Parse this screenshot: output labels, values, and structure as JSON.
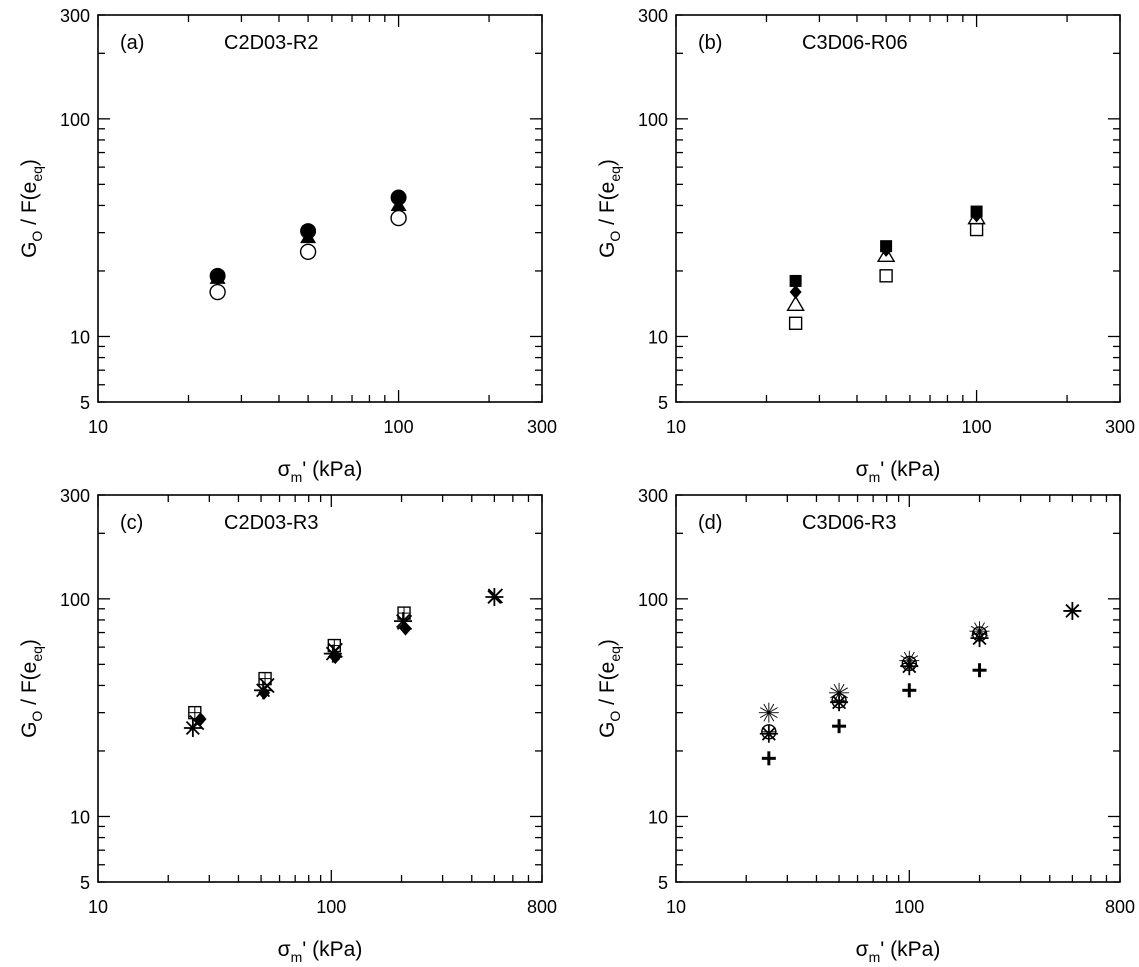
{
  "chart_data": [
    {
      "type": "scatter",
      "panel_label": "(a)",
      "title": "C2D03-R2",
      "xlabel": {
        "main": "σ",
        "sub": "m",
        "rest": "' (kPa)"
      },
      "ylabel": {
        "g": "G",
        "gsub": "O",
        "mid": " / F(e",
        "esub": "eq",
        "end": ")"
      },
      "xscale": "log",
      "yscale": "log",
      "xlim": [
        10,
        300
      ],
      "ylim": [
        5,
        300
      ],
      "xticklabels": [
        "10",
        "100",
        "300"
      ],
      "yticklabels": [
        "5",
        "10",
        "100",
        "300"
      ],
      "grid": false,
      "series": [
        {
          "marker": "circle-filled",
          "points": [
            [
              25,
              19
            ],
            [
              50,
              30.5
            ],
            [
              100,
              43.5
            ]
          ]
        },
        {
          "marker": "circle-open",
          "points": [
            [
              25,
              16
            ],
            [
              50,
              24.5
            ],
            [
              100,
              35
            ]
          ]
        },
        {
          "marker": "triangle-filled",
          "points": [
            [
              25,
              18.5
            ],
            [
              50,
              28.5
            ],
            [
              100,
              40
            ]
          ]
        }
      ]
    },
    {
      "type": "scatter",
      "panel_label": "(b)",
      "title": "C3D06-R06",
      "xlabel": {
        "main": "σ",
        "sub": "m",
        "rest": "' (kPa)"
      },
      "ylabel": {
        "g": "G",
        "gsub": "O",
        "mid": " / F(e",
        "esub": "eq",
        "end": ")"
      },
      "xscale": "log",
      "yscale": "log",
      "xlim": [
        10,
        300
      ],
      "ylim": [
        5,
        300
      ],
      "xticklabels": [
        "10",
        "100",
        "300"
      ],
      "yticklabels": [
        "5",
        "10",
        "100",
        "300"
      ],
      "grid": false,
      "series": [
        {
          "marker": "square-filled",
          "points": [
            [
              25,
              18
            ],
            [
              50,
              26
            ],
            [
              100,
              37.5
            ]
          ]
        },
        {
          "marker": "diamond-filled",
          "points": [
            [
              25,
              16
            ],
            [
              50,
              25
            ],
            [
              100,
              36
            ]
          ]
        },
        {
          "marker": "triangle-open",
          "points": [
            [
              25,
              14
            ],
            [
              50,
              23.5
            ],
            [
              100,
              35
            ]
          ]
        },
        {
          "marker": "square-open",
          "points": [
            [
              25,
              11.5
            ],
            [
              50,
              19
            ],
            [
              100,
              31
            ]
          ]
        }
      ]
    },
    {
      "type": "scatter",
      "panel_label": "(c)",
      "title": "C2D03-R3",
      "xlabel": {
        "main": "σ",
        "sub": "m",
        "rest": "' (kPa)"
      },
      "ylabel": {
        "g": "G",
        "gsub": "O",
        "mid": " / F(e",
        "esub": "eq",
        "end": ")"
      },
      "xscale": "log",
      "yscale": "log",
      "xlim": [
        10,
        800
      ],
      "ylim": [
        5,
        300
      ],
      "xticklabels": [
        "10",
        "100",
        "800"
      ],
      "yticklabels": [
        "5",
        "10",
        "100",
        "300"
      ],
      "grid": false,
      "series": [
        {
          "marker": "square-open-cross",
          "points": [
            [
              26,
              30
            ],
            [
              52,
              43
            ],
            [
              103,
              61
            ],
            [
              205,
              86
            ]
          ]
        },
        {
          "marker": "diamond-filled",
          "points": [
            [
              27.5,
              28
            ],
            [
              51.5,
              37
            ],
            [
              104,
              54
            ],
            [
              208,
              73
            ]
          ]
        },
        {
          "marker": "star",
          "points": [
            [
              25.5,
              25.5
            ],
            [
              51,
              38
            ],
            [
              101.5,
              56
            ],
            [
              203,
              79
            ],
            [
              500,
              102
            ]
          ]
        },
        {
          "marker": "x-cross",
          "points": [
            [
              26.5,
              27
            ],
            [
              53,
              40
            ],
            [
              104,
              58
            ],
            [
              206,
              78
            ],
            [
              505,
              103
            ]
          ]
        }
      ]
    },
    {
      "type": "scatter",
      "panel_label": "(d)",
      "title": "C3D06-R3",
      "xlabel": {
        "main": "σ",
        "sub": "m",
        "rest": "' (kPa)"
      },
      "ylabel": {
        "g": "G",
        "gsub": "O",
        "mid": " / F(e",
        "esub": "eq",
        "end": ")"
      },
      "xscale": "log",
      "yscale": "log",
      "xlim": [
        10,
        800
      ],
      "ylim": [
        5,
        300
      ],
      "xticklabels": [
        "10",
        "100",
        "800"
      ],
      "yticklabels": [
        "5",
        "10",
        "100",
        "300"
      ],
      "grid": false,
      "series": [
        {
          "marker": "plus-bold",
          "points": [
            [
              25,
              18.5
            ],
            [
              50,
              26
            ],
            [
              100,
              38
            ],
            [
              200,
              47
            ]
          ]
        },
        {
          "marker": "circle-open-cross",
          "points": [
            [
              25,
              24.5
            ],
            [
              50,
              34
            ],
            [
              100,
              50.5
            ],
            [
              200,
              69
            ]
          ]
        },
        {
          "marker": "star-open",
          "points": [
            [
              25,
              30
            ],
            [
              50,
              37
            ],
            [
              100,
              52
            ],
            [
              200,
              71
            ]
          ]
        },
        {
          "marker": "star",
          "points": [
            [
              25,
              24
            ],
            [
              50,
              33.5
            ],
            [
              100,
              49
            ],
            [
              200,
              66
            ],
            [
              500,
              88
            ]
          ]
        }
      ]
    }
  ]
}
